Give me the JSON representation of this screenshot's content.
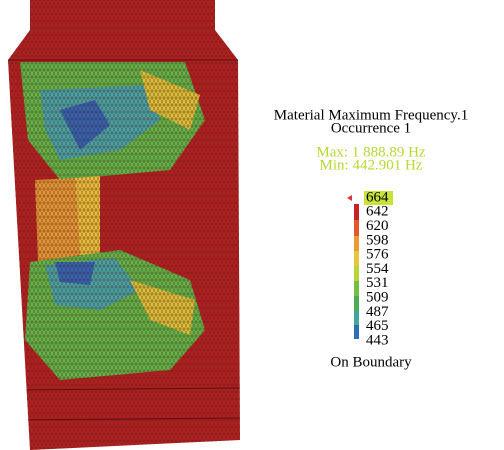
{
  "legend": {
    "title": "Material Maximum Frequency.1",
    "occurrence": "Occurrence 1",
    "max": "Max: 1 888.89 Hz",
    "min": "Min: 442.901 Hz",
    "labels": [
      664,
      642,
      620,
      598,
      576,
      554,
      531,
      509,
      487,
      465,
      443
    ],
    "footer": "On Boundary"
  }
}
